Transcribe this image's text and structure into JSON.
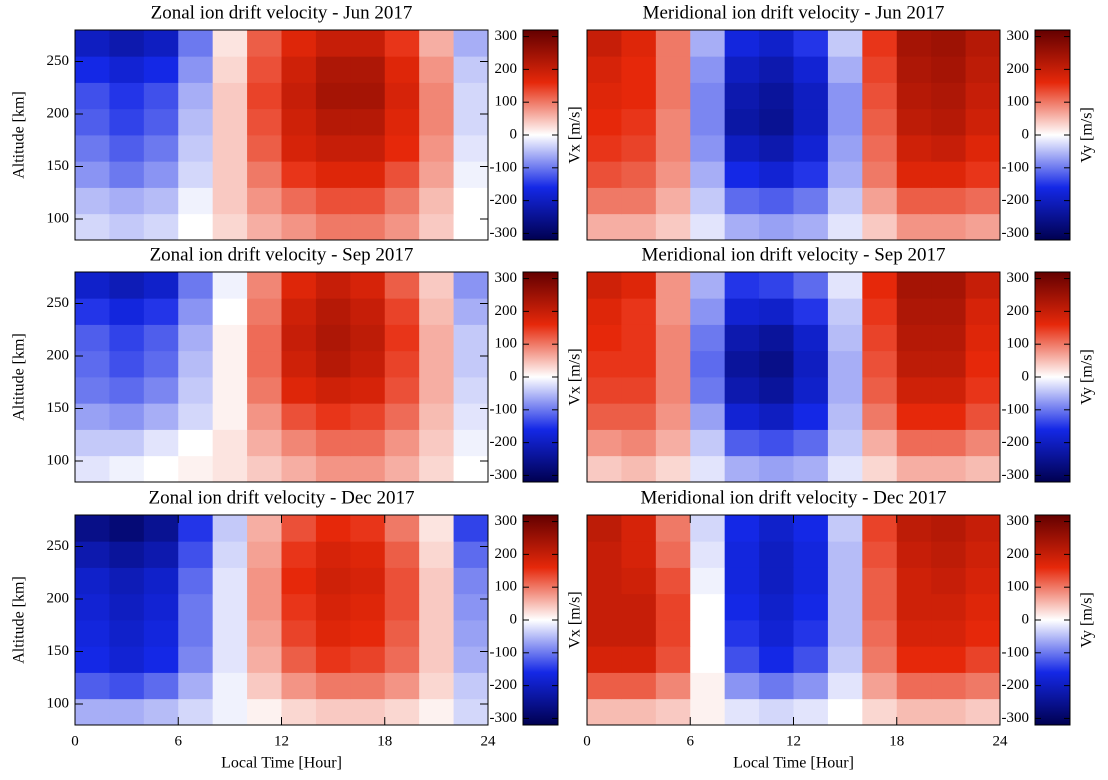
{
  "chart_data": [
    {
      "type": "heatmap",
      "title": "Zonal ion drift velocity - Jun 2017",
      "ylabel": "Altitude [km]",
      "colorbar_label": "Vx [m/s]",
      "xlim": [
        0,
        24
      ],
      "ylim": [
        80,
        280
      ],
      "yticks": [
        100,
        150,
        200,
        250
      ],
      "zlim": [
        -320,
        320
      ],
      "zticks": [
        -300,
        -200,
        -100,
        0,
        100,
        200,
        300
      ],
      "colorscale": [
        "#000050",
        "#1428e6",
        "#ffffff",
        "#e6280a",
        "#640000"
      ],
      "x_bins": [
        0,
        2,
        4,
        6,
        8,
        10,
        12,
        14,
        16,
        18,
        20,
        22,
        24
      ],
      "y_bins": [
        80,
        105,
        130,
        155,
        180,
        205,
        230,
        255,
        280
      ],
      "values": [
        [
          -30,
          -40,
          -30,
          0,
          30,
          60,
          80,
          100,
          100,
          80,
          40,
          0
        ],
        [
          -50,
          -60,
          -50,
          -10,
          40,
          80,
          110,
          130,
          130,
          100,
          50,
          0
        ],
        [
          -80,
          -100,
          -80,
          -30,
          40,
          100,
          150,
          170,
          170,
          130,
          70,
          -10
        ],
        [
          -100,
          -120,
          -100,
          -40,
          40,
          120,
          180,
          200,
          200,
          160,
          80,
          -20
        ],
        [
          -120,
          -140,
          -120,
          -50,
          40,
          130,
          190,
          220,
          220,
          170,
          90,
          -30
        ],
        [
          -130,
          -150,
          -130,
          -60,
          40,
          140,
          200,
          240,
          240,
          180,
          90,
          -30
        ],
        [
          -160,
          -180,
          -160,
          -80,
          30,
          130,
          190,
          230,
          230,
          170,
          80,
          -40
        ],
        [
          -200,
          -220,
          -200,
          -100,
          20,
          120,
          170,
          200,
          200,
          150,
          60,
          -60
        ]
      ]
    },
    {
      "type": "heatmap",
      "title": "Meridional ion drift velocity - Jun 2017",
      "colorbar_label": "Vy [m/s]",
      "xlim": [
        0,
        24
      ],
      "ylim": [
        80,
        280
      ],
      "zlim": [
        -320,
        320
      ],
      "zticks": [
        -300,
        -200,
        -100,
        0,
        100,
        200,
        300
      ],
      "colorscale": [
        "#000050",
        "#1428e6",
        "#ffffff",
        "#e6280a",
        "#640000"
      ],
      "x_bins": [
        0,
        2,
        4,
        6,
        8,
        10,
        12,
        14,
        16,
        18,
        20,
        22,
        24
      ],
      "y_bins": [
        80,
        105,
        130,
        155,
        180,
        205,
        230,
        255,
        280
      ],
      "values": [
        [
          60,
          60,
          40,
          -20,
          -60,
          -70,
          -60,
          -20,
          40,
          80,
          80,
          70
        ],
        [
          100,
          100,
          60,
          -40,
          -110,
          -120,
          -100,
          -40,
          70,
          120,
          120,
          110
        ],
        [
          130,
          120,
          80,
          -60,
          -160,
          -180,
          -150,
          -60,
          100,
          170,
          170,
          150
        ],
        [
          150,
          140,
          90,
          -80,
          -200,
          -220,
          -180,
          -70,
          110,
          190,
          200,
          170
        ],
        [
          160,
          150,
          90,
          -90,
          -230,
          -250,
          -200,
          -80,
          120,
          210,
          220,
          190
        ],
        [
          170,
          160,
          100,
          -90,
          -220,
          -240,
          -200,
          -80,
          130,
          220,
          230,
          200
        ],
        [
          180,
          160,
          100,
          -80,
          -200,
          -220,
          -180,
          -60,
          140,
          230,
          240,
          210
        ],
        [
          200,
          170,
          100,
          -60,
          -170,
          -190,
          -150,
          -40,
          150,
          240,
          250,
          220
        ]
      ]
    },
    {
      "type": "heatmap",
      "title": "Zonal ion drift velocity - Sep 2017",
      "ylabel": "Altitude [km]",
      "colorbar_label": "Vx [m/s]",
      "xlim": [
        0,
        24
      ],
      "ylim": [
        80,
        280
      ],
      "yticks": [
        100,
        150,
        200,
        250
      ],
      "zlim": [
        -320,
        320
      ],
      "zticks": [
        -300,
        -200,
        -100,
        0,
        100,
        200,
        300
      ],
      "colorscale": [
        "#000050",
        "#1428e6",
        "#ffffff",
        "#e6280a",
        "#640000"
      ],
      "x_bins": [
        0,
        2,
        4,
        6,
        8,
        10,
        12,
        14,
        16,
        18,
        20,
        22,
        24
      ],
      "y_bins": [
        80,
        105,
        130,
        155,
        180,
        205,
        230,
        255,
        280
      ],
      "values": [
        [
          -20,
          -10,
          0,
          10,
          20,
          40,
          60,
          80,
          80,
          60,
          30,
          0
        ],
        [
          -40,
          -40,
          -20,
          0,
          20,
          60,
          90,
          110,
          110,
          80,
          40,
          -10
        ],
        [
          -70,
          -80,
          -60,
          -30,
          10,
          80,
          130,
          150,
          140,
          110,
          50,
          -20
        ],
        [
          -100,
          -110,
          -90,
          -40,
          10,
          100,
          170,
          190,
          180,
          130,
          60,
          -30
        ],
        [
          -110,
          -130,
          -110,
          -50,
          10,
          110,
          190,
          220,
          200,
          140,
          60,
          -40
        ],
        [
          -120,
          -140,
          -120,
          -60,
          10,
          110,
          200,
          230,
          210,
          150,
          60,
          -40
        ],
        [
          -150,
          -170,
          -150,
          -80,
          0,
          100,
          190,
          220,
          200,
          140,
          50,
          -60
        ],
        [
          -190,
          -210,
          -190,
          -100,
          -10,
          90,
          170,
          200,
          180,
          120,
          40,
          -80
        ]
      ]
    },
    {
      "type": "heatmap",
      "title": "Meridional ion drift velocity - Sep 2017",
      "colorbar_label": "Vy [m/s]",
      "xlim": [
        0,
        24
      ],
      "ylim": [
        80,
        280
      ],
      "zlim": [
        -320,
        320
      ],
      "zticks": [
        -300,
        -200,
        -100,
        0,
        100,
        200,
        300
      ],
      "colorscale": [
        "#000050",
        "#1428e6",
        "#ffffff",
        "#e6280a",
        "#640000"
      ],
      "x_bins": [
        0,
        2,
        4,
        6,
        8,
        10,
        12,
        14,
        16,
        18,
        20,
        22,
        24
      ],
      "y_bins": [
        80,
        105,
        130,
        155,
        180,
        205,
        230,
        255,
        280
      ],
      "values": [
        [
          40,
          50,
          30,
          -20,
          -60,
          -70,
          -60,
          -20,
          30,
          60,
          60,
          50
        ],
        [
          80,
          90,
          60,
          -40,
          -120,
          -130,
          -110,
          -40,
          60,
          110,
          110,
          90
        ],
        [
          120,
          120,
          80,
          -70,
          -180,
          -200,
          -160,
          -50,
          100,
          160,
          160,
          130
        ],
        [
          140,
          140,
          90,
          -100,
          -220,
          -240,
          -190,
          -60,
          120,
          190,
          190,
          150
        ],
        [
          150,
          150,
          90,
          -110,
          -240,
          -260,
          -200,
          -60,
          130,
          210,
          210,
          160
        ],
        [
          160,
          150,
          90,
          -100,
          -220,
          -240,
          -190,
          -50,
          140,
          220,
          220,
          170
        ],
        [
          170,
          150,
          80,
          -80,
          -180,
          -190,
          -150,
          -40,
          150,
          230,
          230,
          180
        ],
        [
          190,
          170,
          80,
          -60,
          -150,
          -140,
          -110,
          -20,
          160,
          240,
          240,
          200
        ]
      ]
    },
    {
      "type": "heatmap",
      "title": "Zonal ion drift velocity - Dec 2017",
      "xlabel": "Local Time [Hour]",
      "ylabel": "Altitude [km]",
      "colorbar_label": "Vx [m/s]",
      "xlim": [
        0,
        24
      ],
      "xticks": [
        0,
        6,
        12,
        18,
        24
      ],
      "ylim": [
        80,
        280
      ],
      "yticks": [
        100,
        150,
        200,
        250
      ],
      "zlim": [
        -320,
        320
      ],
      "zticks": [
        -300,
        -200,
        -100,
        0,
        100,
        200,
        300
      ],
      "colorscale": [
        "#000050",
        "#1428e6",
        "#ffffff",
        "#e6280a",
        "#640000"
      ],
      "x_bins": [
        0,
        2,
        4,
        6,
        8,
        10,
        12,
        14,
        16,
        18,
        20,
        22,
        24
      ],
      "y_bins": [
        80,
        105,
        130,
        155,
        180,
        205,
        230,
        255,
        280
      ],
      "values": [
        [
          -60,
          -60,
          -50,
          -30,
          -10,
          10,
          30,
          40,
          40,
          30,
          10,
          -30
        ],
        [
          -120,
          -130,
          -110,
          -60,
          -10,
          40,
          80,
          100,
          100,
          80,
          30,
          -40
        ],
        [
          -160,
          -180,
          -160,
          -90,
          -20,
          60,
          120,
          150,
          140,
          110,
          40,
          -60
        ],
        [
          -170,
          -190,
          -170,
          -100,
          -20,
          70,
          140,
          170,
          160,
          120,
          40,
          -70
        ],
        [
          -180,
          -200,
          -180,
          -100,
          -20,
          80,
          150,
          180,
          170,
          130,
          40,
          -80
        ],
        [
          -190,
          -210,
          -190,
          -110,
          -20,
          80,
          160,
          190,
          180,
          130,
          40,
          -90
        ],
        [
          -220,
          -240,
          -220,
          -130,
          -30,
          70,
          150,
          180,
          170,
          120,
          30,
          -110
        ],
        [
          -260,
          -280,
          -250,
          -150,
          -40,
          60,
          130,
          160,
          150,
          100,
          20,
          -140
        ]
      ]
    },
    {
      "type": "heatmap",
      "title": "Meridional ion drift velocity - Dec 2017",
      "xlabel": "Local Time [Hour]",
      "colorbar_label": "Vy [m/s]",
      "xlim": [
        0,
        24
      ],
      "xticks": [
        0,
        6,
        12,
        18,
        24
      ],
      "ylim": [
        80,
        280
      ],
      "zlim": [
        -320,
        320
      ],
      "zticks": [
        -300,
        -200,
        -100,
        0,
        100,
        200,
        300
      ],
      "colorscale": [
        "#000050",
        "#1428e6",
        "#ffffff",
        "#e6280a",
        "#640000"
      ],
      "x_bins": [
        0,
        2,
        4,
        6,
        8,
        10,
        12,
        14,
        16,
        18,
        20,
        22,
        24
      ],
      "y_bins": [
        80,
        105,
        130,
        155,
        180,
        205,
        230,
        255,
        280
      ],
      "values": [
        [
          50,
          50,
          40,
          10,
          -20,
          -30,
          -20,
          0,
          30,
          50,
          50,
          40
        ],
        [
          120,
          120,
          90,
          10,
          -80,
          -100,
          -80,
          -20,
          70,
          110,
          110,
          100
        ],
        [
          180,
          180,
          130,
          0,
          -130,
          -160,
          -130,
          -40,
          100,
          160,
          160,
          140
        ],
        [
          200,
          200,
          140,
          0,
          -150,
          -180,
          -150,
          -50,
          110,
          180,
          180,
          160
        ],
        [
          200,
          200,
          140,
          0,
          -160,
          -190,
          -160,
          -50,
          120,
          190,
          190,
          170
        ],
        [
          200,
          190,
          130,
          -10,
          -170,
          -200,
          -170,
          -50,
          120,
          190,
          200,
          180
        ],
        [
          200,
          180,
          110,
          -20,
          -170,
          -200,
          -170,
          -50,
          130,
          200,
          210,
          190
        ],
        [
          210,
          180,
          100,
          -30,
          -160,
          -190,
          -160,
          -40,
          140,
          210,
          220,
          200
        ]
      ]
    }
  ]
}
